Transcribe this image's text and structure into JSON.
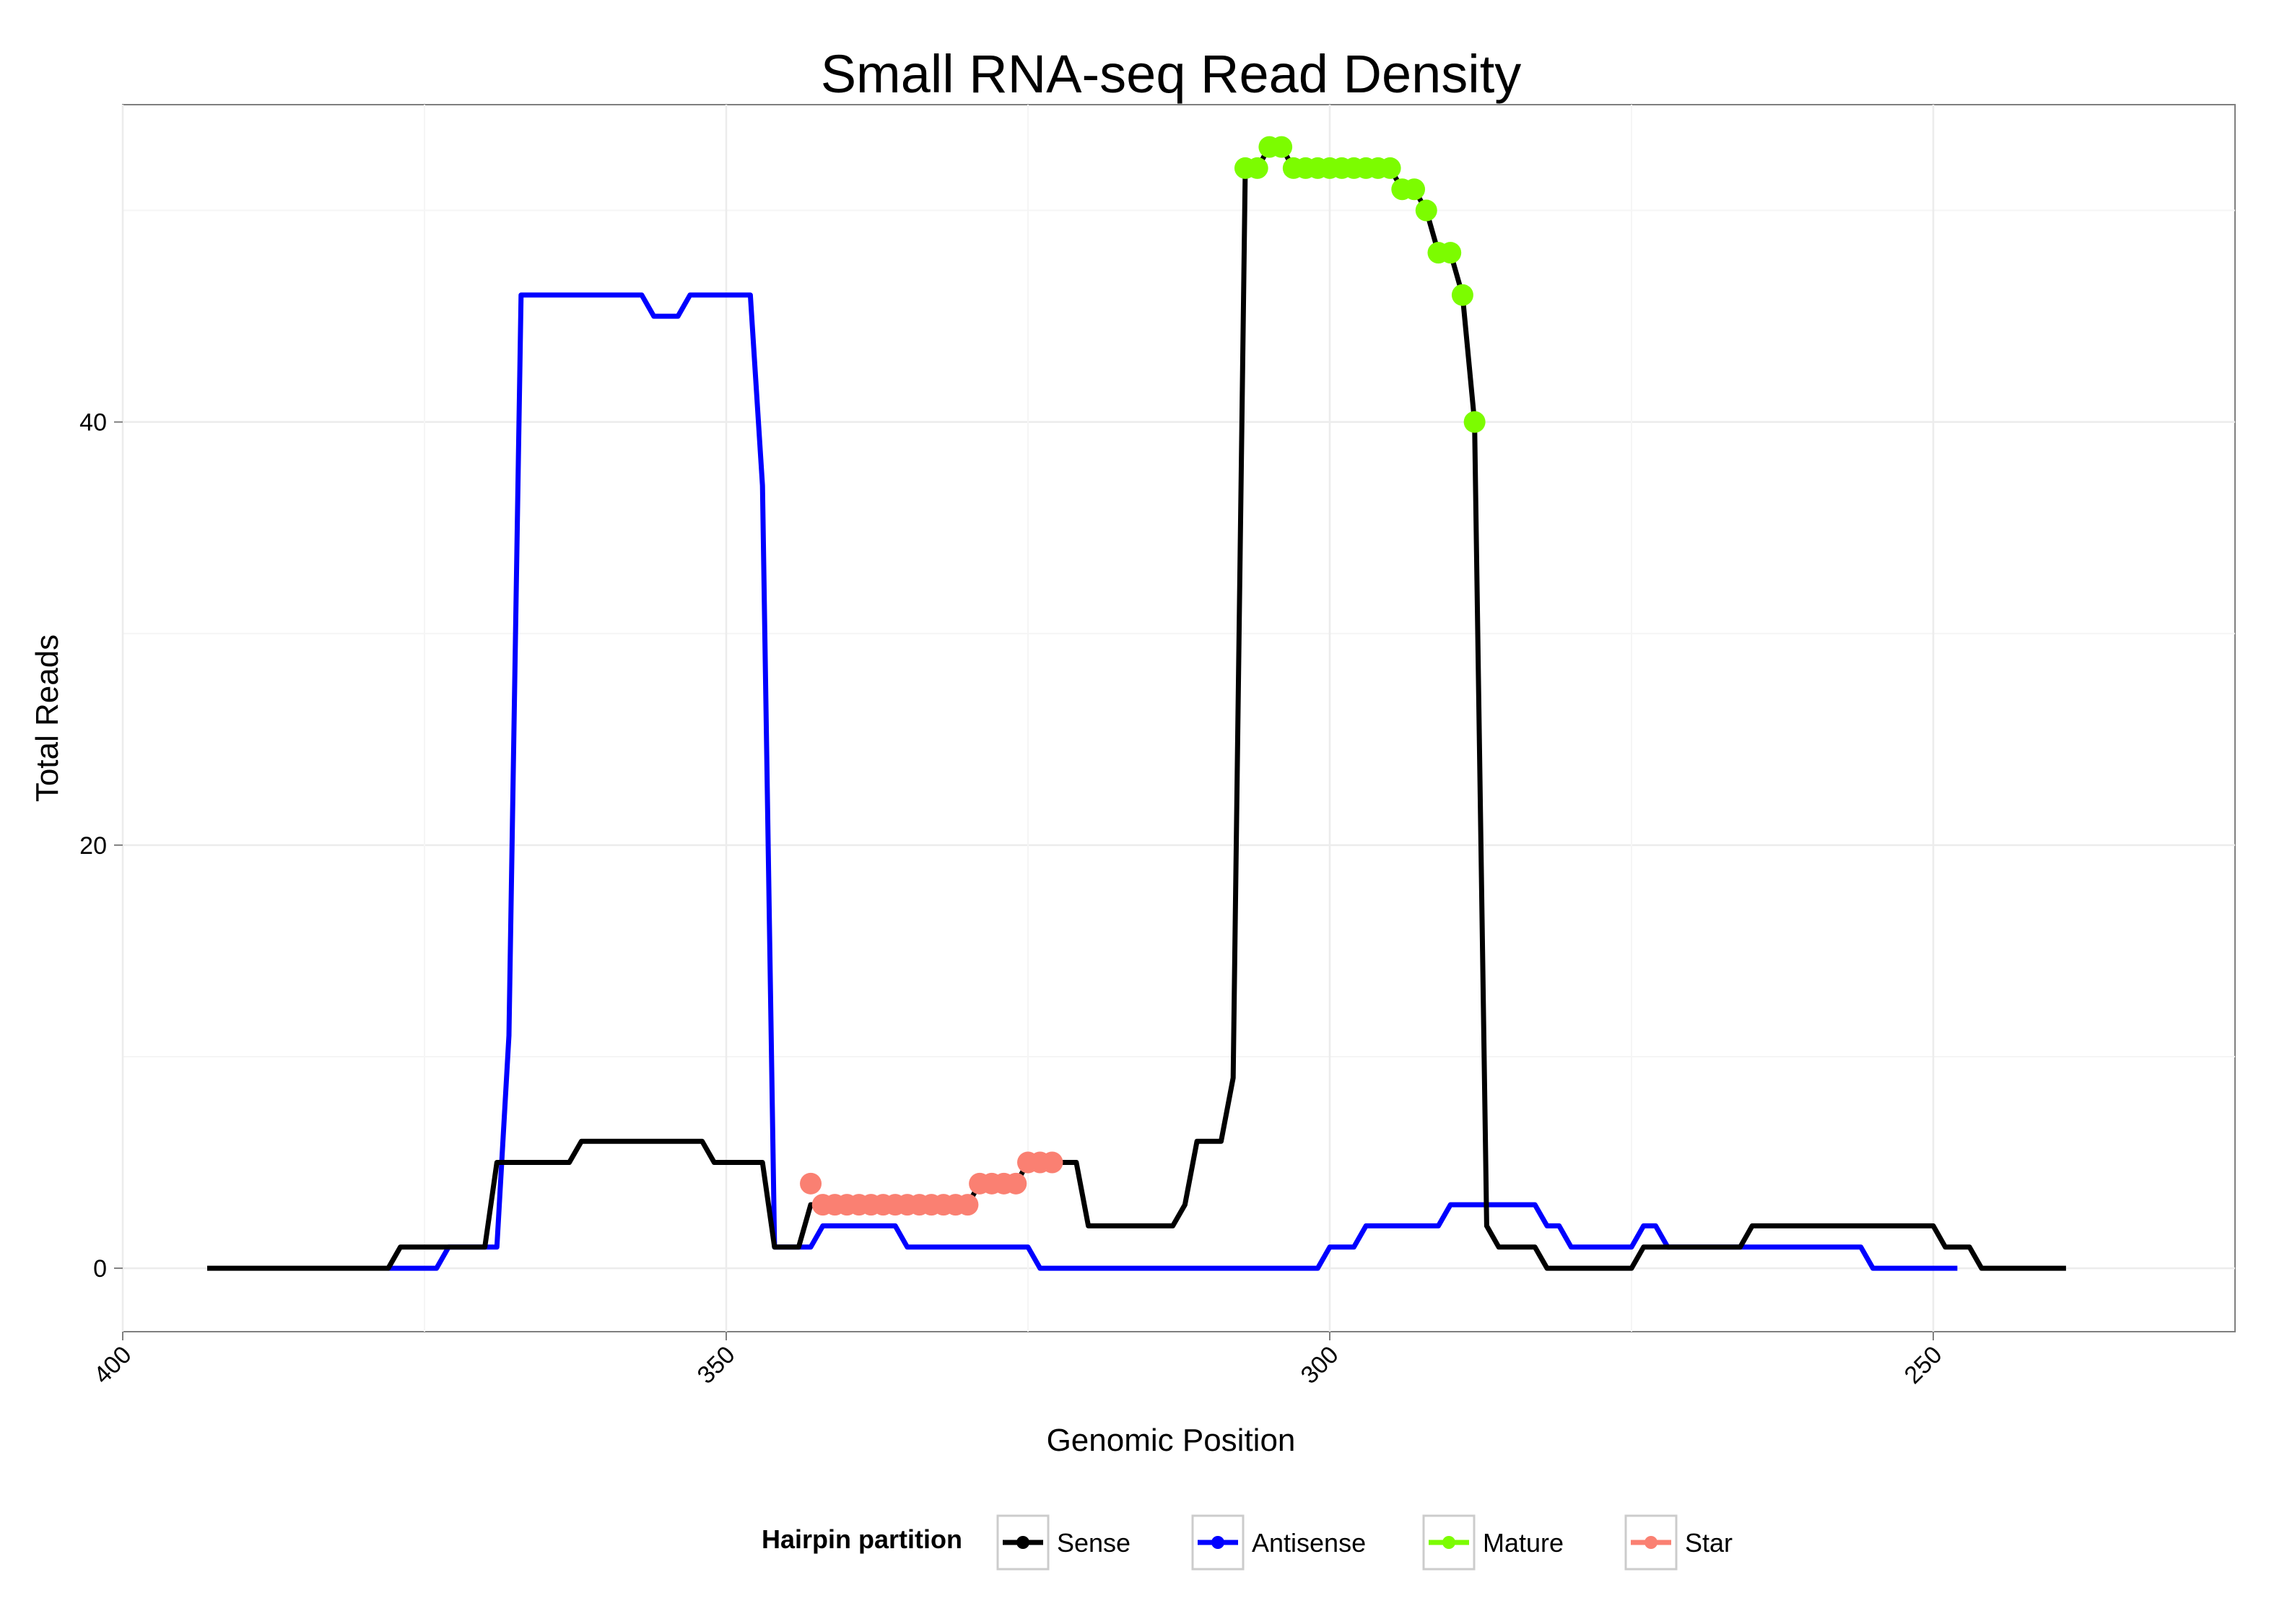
{
  "chart_data": {
    "type": "line",
    "title": "Small RNA-seq Read Density",
    "xlabel": "Genomic Position",
    "ylabel": "Total Reads",
    "x_reversed": true,
    "xlim": [
      400,
      225
    ],
    "ylim": [
      -3,
      55
    ],
    "x_ticks": [
      400,
      350,
      300,
      250
    ],
    "x_tick_labels": [
      "400",
      "350",
      "300",
      "250"
    ],
    "y_ticks": [
      0,
      20,
      40
    ],
    "y_tick_labels": [
      "0",
      "20",
      "40"
    ],
    "grid": true,
    "legend_position": "bottom",
    "legend": {
      "title": "Hairpin partition",
      "entries": [
        {
          "label": "Sense",
          "color": "#000000"
        },
        {
          "label": "Antisense",
          "color": "#0000ff"
        },
        {
          "label": "Mature",
          "color": "#7cfc00"
        },
        {
          "label": "Star",
          "color": "#fa8072"
        }
      ]
    },
    "series": [
      {
        "name": "Sense",
        "color": "#000000",
        "points": [
          [
            393,
            0
          ],
          [
            378,
            0
          ],
          [
            377,
            1
          ],
          [
            373,
            1
          ],
          [
            370,
            1
          ],
          [
            369,
            5
          ],
          [
            363,
            5
          ],
          [
            362,
            6
          ],
          [
            356,
            6
          ],
          [
            352,
            6
          ],
          [
            351,
            5
          ],
          [
            347,
            5
          ],
          [
            346,
            1
          ],
          [
            344,
            1
          ],
          [
            343,
            3
          ],
          [
            342,
            3
          ],
          [
            338,
            3
          ],
          [
            337,
            3
          ],
          [
            330,
            3
          ],
          [
            329,
            4
          ],
          [
            326,
            4
          ],
          [
            325,
            5
          ],
          [
            321,
            5
          ],
          [
            320,
            2
          ],
          [
            313,
            2
          ],
          [
            312,
            3
          ],
          [
            311,
            6
          ],
          [
            309,
            6
          ],
          [
            308,
            9
          ],
          [
            307,
            52
          ],
          [
            306,
            52
          ],
          [
            305,
            53
          ],
          [
            304,
            53
          ],
          [
            303,
            52
          ],
          [
            300,
            52
          ],
          [
            295,
            52
          ],
          [
            294,
            51
          ],
          [
            293,
            51
          ],
          [
            292,
            50
          ],
          [
            291,
            48
          ],
          [
            290,
            48
          ],
          [
            289,
            46
          ],
          [
            288,
            40
          ],
          [
            287,
            2
          ],
          [
            286,
            1
          ],
          [
            283,
            1
          ],
          [
            282,
            0
          ],
          [
            275,
            0
          ],
          [
            274,
            1
          ],
          [
            266,
            1
          ],
          [
            265,
            2
          ],
          [
            250,
            2
          ],
          [
            249,
            1
          ],
          [
            247,
            1
          ],
          [
            246,
            0
          ],
          [
            239,
            0
          ]
        ]
      },
      {
        "name": "Antisense",
        "color": "#0000ff",
        "points": [
          [
            378,
            0
          ],
          [
            374,
            0
          ],
          [
            373,
            1
          ],
          [
            369,
            1
          ],
          [
            368,
            11
          ],
          [
            367,
            46
          ],
          [
            357,
            46
          ],
          [
            356,
            45
          ],
          [
            354,
            45
          ],
          [
            353,
            46
          ],
          [
            348,
            46
          ],
          [
            347,
            37
          ],
          [
            346,
            1
          ],
          [
            343,
            1
          ],
          [
            342,
            2
          ],
          [
            336,
            2
          ],
          [
            335,
            1
          ],
          [
            325,
            1
          ],
          [
            324,
            0
          ],
          [
            301,
            0
          ],
          [
            300,
            1
          ],
          [
            298,
            1
          ],
          [
            297,
            2
          ],
          [
            291,
            2
          ],
          [
            290,
            3
          ],
          [
            283,
            3
          ],
          [
            282,
            2
          ],
          [
            281,
            2
          ],
          [
            280,
            1
          ],
          [
            275,
            1
          ],
          [
            274,
            2
          ],
          [
            273,
            2
          ],
          [
            272,
            1
          ],
          [
            262,
            1
          ],
          [
            261,
            1
          ],
          [
            256,
            1
          ],
          [
            255,
            0
          ],
          [
            248,
            0
          ]
        ]
      },
      {
        "name": "Mature",
        "color": "#7cfc00",
        "points": [
          [
            307,
            52
          ],
          [
            306,
            52
          ],
          [
            305,
            53
          ],
          [
            304,
            53
          ],
          [
            303,
            52
          ],
          [
            302,
            52
          ],
          [
            301,
            52
          ],
          [
            300,
            52
          ],
          [
            299,
            52
          ],
          [
            298,
            52
          ],
          [
            297,
            52
          ],
          [
            296,
            52
          ],
          [
            295,
            52
          ],
          [
            294,
            51
          ],
          [
            293,
            51
          ],
          [
            292,
            50
          ],
          [
            291,
            48
          ],
          [
            290,
            48
          ],
          [
            289,
            46
          ],
          [
            288,
            40
          ]
        ]
      },
      {
        "name": "Star",
        "color": "#fa8072",
        "points": [
          [
            343,
            4
          ],
          [
            342,
            3
          ],
          [
            341,
            3
          ],
          [
            340,
            3
          ],
          [
            339,
            3
          ],
          [
            338,
            3
          ],
          [
            337,
            3
          ],
          [
            336,
            3
          ],
          [
            335,
            3
          ],
          [
            334,
            3
          ],
          [
            333,
            3
          ],
          [
            332,
            3
          ],
          [
            331,
            3
          ],
          [
            330,
            3
          ],
          [
            329,
            4
          ],
          [
            328,
            4
          ],
          [
            327,
            4
          ],
          [
            326,
            4
          ],
          [
            325,
            5
          ],
          [
            324,
            5
          ],
          [
            323,
            5
          ]
        ]
      }
    ]
  }
}
